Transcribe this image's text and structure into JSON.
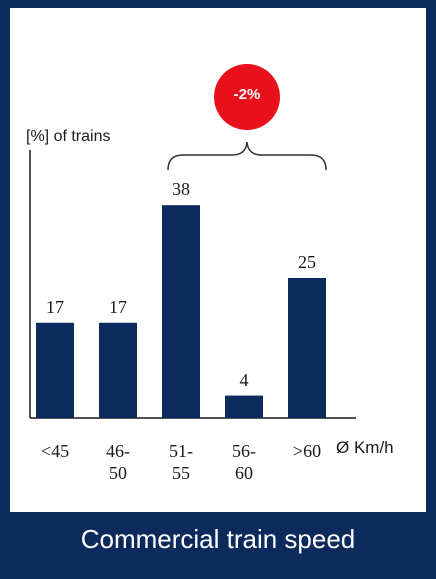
{
  "chart_data": {
    "type": "bar",
    "title": "Commercial train speed",
    "y_label": "[%] of trains",
    "x_label": "Ø Km/h",
    "annotation": "-2%",
    "categories": [
      "<45",
      "46-\n50",
      "51-\n55",
      "56-\n60",
      ">60"
    ],
    "values": [
      17,
      17,
      38,
      4,
      25
    ],
    "color": "#0d2a5c",
    "ylim": [
      0,
      40
    ]
  }
}
